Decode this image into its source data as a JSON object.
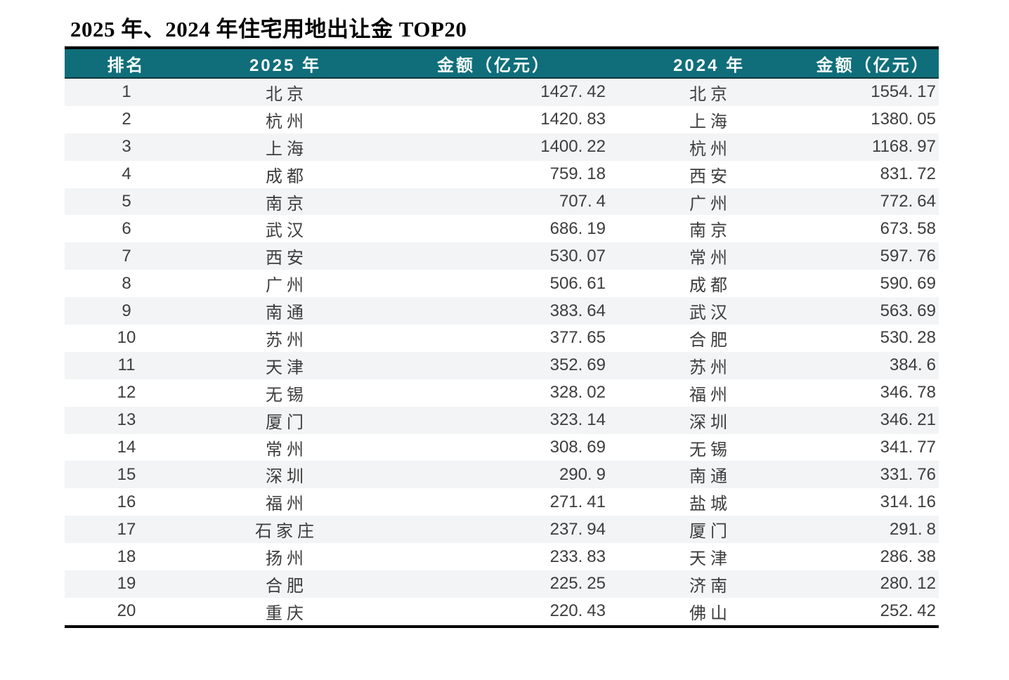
{
  "title": "2025 年、2024 年住宅用地出让金 TOP20",
  "colors": {
    "header_bg": "#0f6e7a",
    "header_text": "#fbfdfd",
    "row_shaded": "#f3f4f6",
    "row_plain": "#ffffff",
    "table_border": "#000000",
    "body_text": "#3d3d3d"
  },
  "table": {
    "columns": [
      "排名",
      "2025 年",
      "金额（亿元）",
      "2024 年",
      "金额（亿元）"
    ],
    "rows": [
      [
        "1",
        "北京",
        "1427.42",
        "北京",
        "1554.17"
      ],
      [
        "2",
        "杭州",
        "1420.83",
        "上海",
        "1380.05"
      ],
      [
        "3",
        "上海",
        "1400.22",
        "杭州",
        "1168.97"
      ],
      [
        "4",
        "成都",
        "759.18",
        "西安",
        "831.72"
      ],
      [
        "5",
        "南京",
        "707.4",
        "广州",
        "772.64"
      ],
      [
        "6",
        "武汉",
        "686.19",
        "南京",
        "673.58"
      ],
      [
        "7",
        "西安",
        "530.07",
        "常州",
        "597.76"
      ],
      [
        "8",
        "广州",
        "506.61",
        "成都",
        "590.69"
      ],
      [
        "9",
        "南通",
        "383.64",
        "武汉",
        "563.69"
      ],
      [
        "10",
        "苏州",
        "377.65",
        "合肥",
        "530.28"
      ],
      [
        "11",
        "天津",
        "352.69",
        "苏州",
        "384.6"
      ],
      [
        "12",
        "无锡",
        "328.02",
        "福州",
        "346.78"
      ],
      [
        "13",
        "厦门",
        "323.14",
        "深圳",
        "346.21"
      ],
      [
        "14",
        "常州",
        "308.69",
        "无锡",
        "341.77"
      ],
      [
        "15",
        "深圳",
        "290.9",
        "南通",
        "331.76"
      ],
      [
        "16",
        "福州",
        "271.41",
        "盐城",
        "314.16"
      ],
      [
        "17",
        "石家庄",
        "237.94",
        "厦门",
        "291.8"
      ],
      [
        "18",
        "扬州",
        "233.83",
        "天津",
        "286.38"
      ],
      [
        "19",
        "合肥",
        "225.25",
        "济南",
        "280.12"
      ],
      [
        "20",
        "重庆",
        "220.43",
        "佛山",
        "252.42"
      ]
    ]
  },
  "chart_data": {
    "type": "table",
    "title": "2025 年、2024 年住宅用地出让金 TOP20",
    "columns": [
      "排名",
      "2025 年",
      "金额（亿元）",
      "2024 年",
      "金额（亿元）"
    ],
    "unit": "亿元",
    "series": [
      {
        "name": "2025年住宅用地出让金TOP20",
        "categories": [
          "北京",
          "杭州",
          "上海",
          "成都",
          "南京",
          "武汉",
          "西安",
          "广州",
          "南通",
          "苏州",
          "天津",
          "无锡",
          "厦门",
          "常州",
          "深圳",
          "福州",
          "石家庄",
          "扬州",
          "合肥",
          "重庆"
        ],
        "values": [
          1427.42,
          1420.83,
          1400.22,
          759.18,
          707.4,
          686.19,
          530.07,
          506.61,
          383.64,
          377.65,
          352.69,
          328.02,
          323.14,
          308.69,
          290.9,
          271.41,
          237.94,
          233.83,
          225.25,
          220.43
        ]
      },
      {
        "name": "2024年住宅用地出让金TOP20",
        "categories": [
          "北京",
          "上海",
          "杭州",
          "西安",
          "广州",
          "南京",
          "常州",
          "成都",
          "武汉",
          "合肥",
          "苏州",
          "福州",
          "深圳",
          "无锡",
          "南通",
          "盐城",
          "厦门",
          "天津",
          "济南",
          "佛山"
        ],
        "values": [
          1554.17,
          1380.05,
          1168.97,
          831.72,
          772.64,
          673.58,
          597.76,
          590.69,
          563.69,
          530.28,
          384.6,
          346.78,
          346.21,
          341.77,
          331.76,
          314.16,
          291.8,
          286.38,
          280.12,
          252.42
        ]
      }
    ]
  }
}
